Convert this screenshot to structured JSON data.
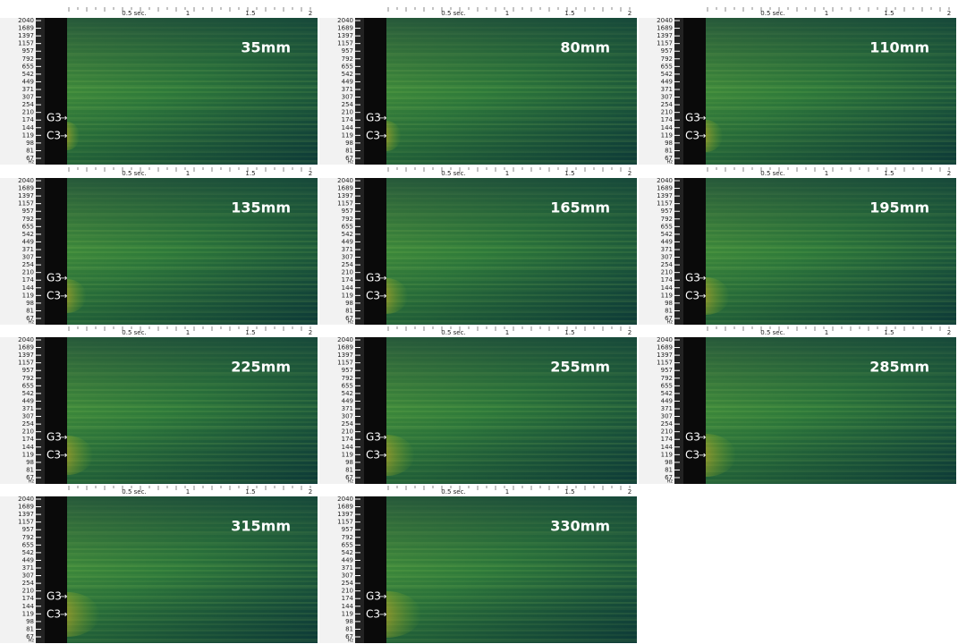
{
  "time_ticks": [
    "0.5 sec.",
    "1",
    "1.5",
    "2"
  ],
  "freq_ticks": [
    "2040",
    "1689",
    "1397",
    "1157",
    "957",
    "792",
    "655",
    "542",
    "449",
    "371",
    "307",
    "254",
    "210",
    "174",
    "144",
    "119",
    "98",
    "81",
    "67"
  ],
  "freq_unit": "Hz",
  "markers": [
    "G3",
    "C3"
  ],
  "panels": [
    {
      "label": "35mm"
    },
    {
      "label": "80mm"
    },
    {
      "label": "110mm"
    },
    {
      "label": "135mm"
    },
    {
      "label": "165mm"
    },
    {
      "label": "195mm"
    },
    {
      "label": "225mm"
    },
    {
      "label": "255mm"
    },
    {
      "label": "285mm"
    },
    {
      "label": "315mm"
    },
    {
      "label": "330mm"
    }
  ]
}
